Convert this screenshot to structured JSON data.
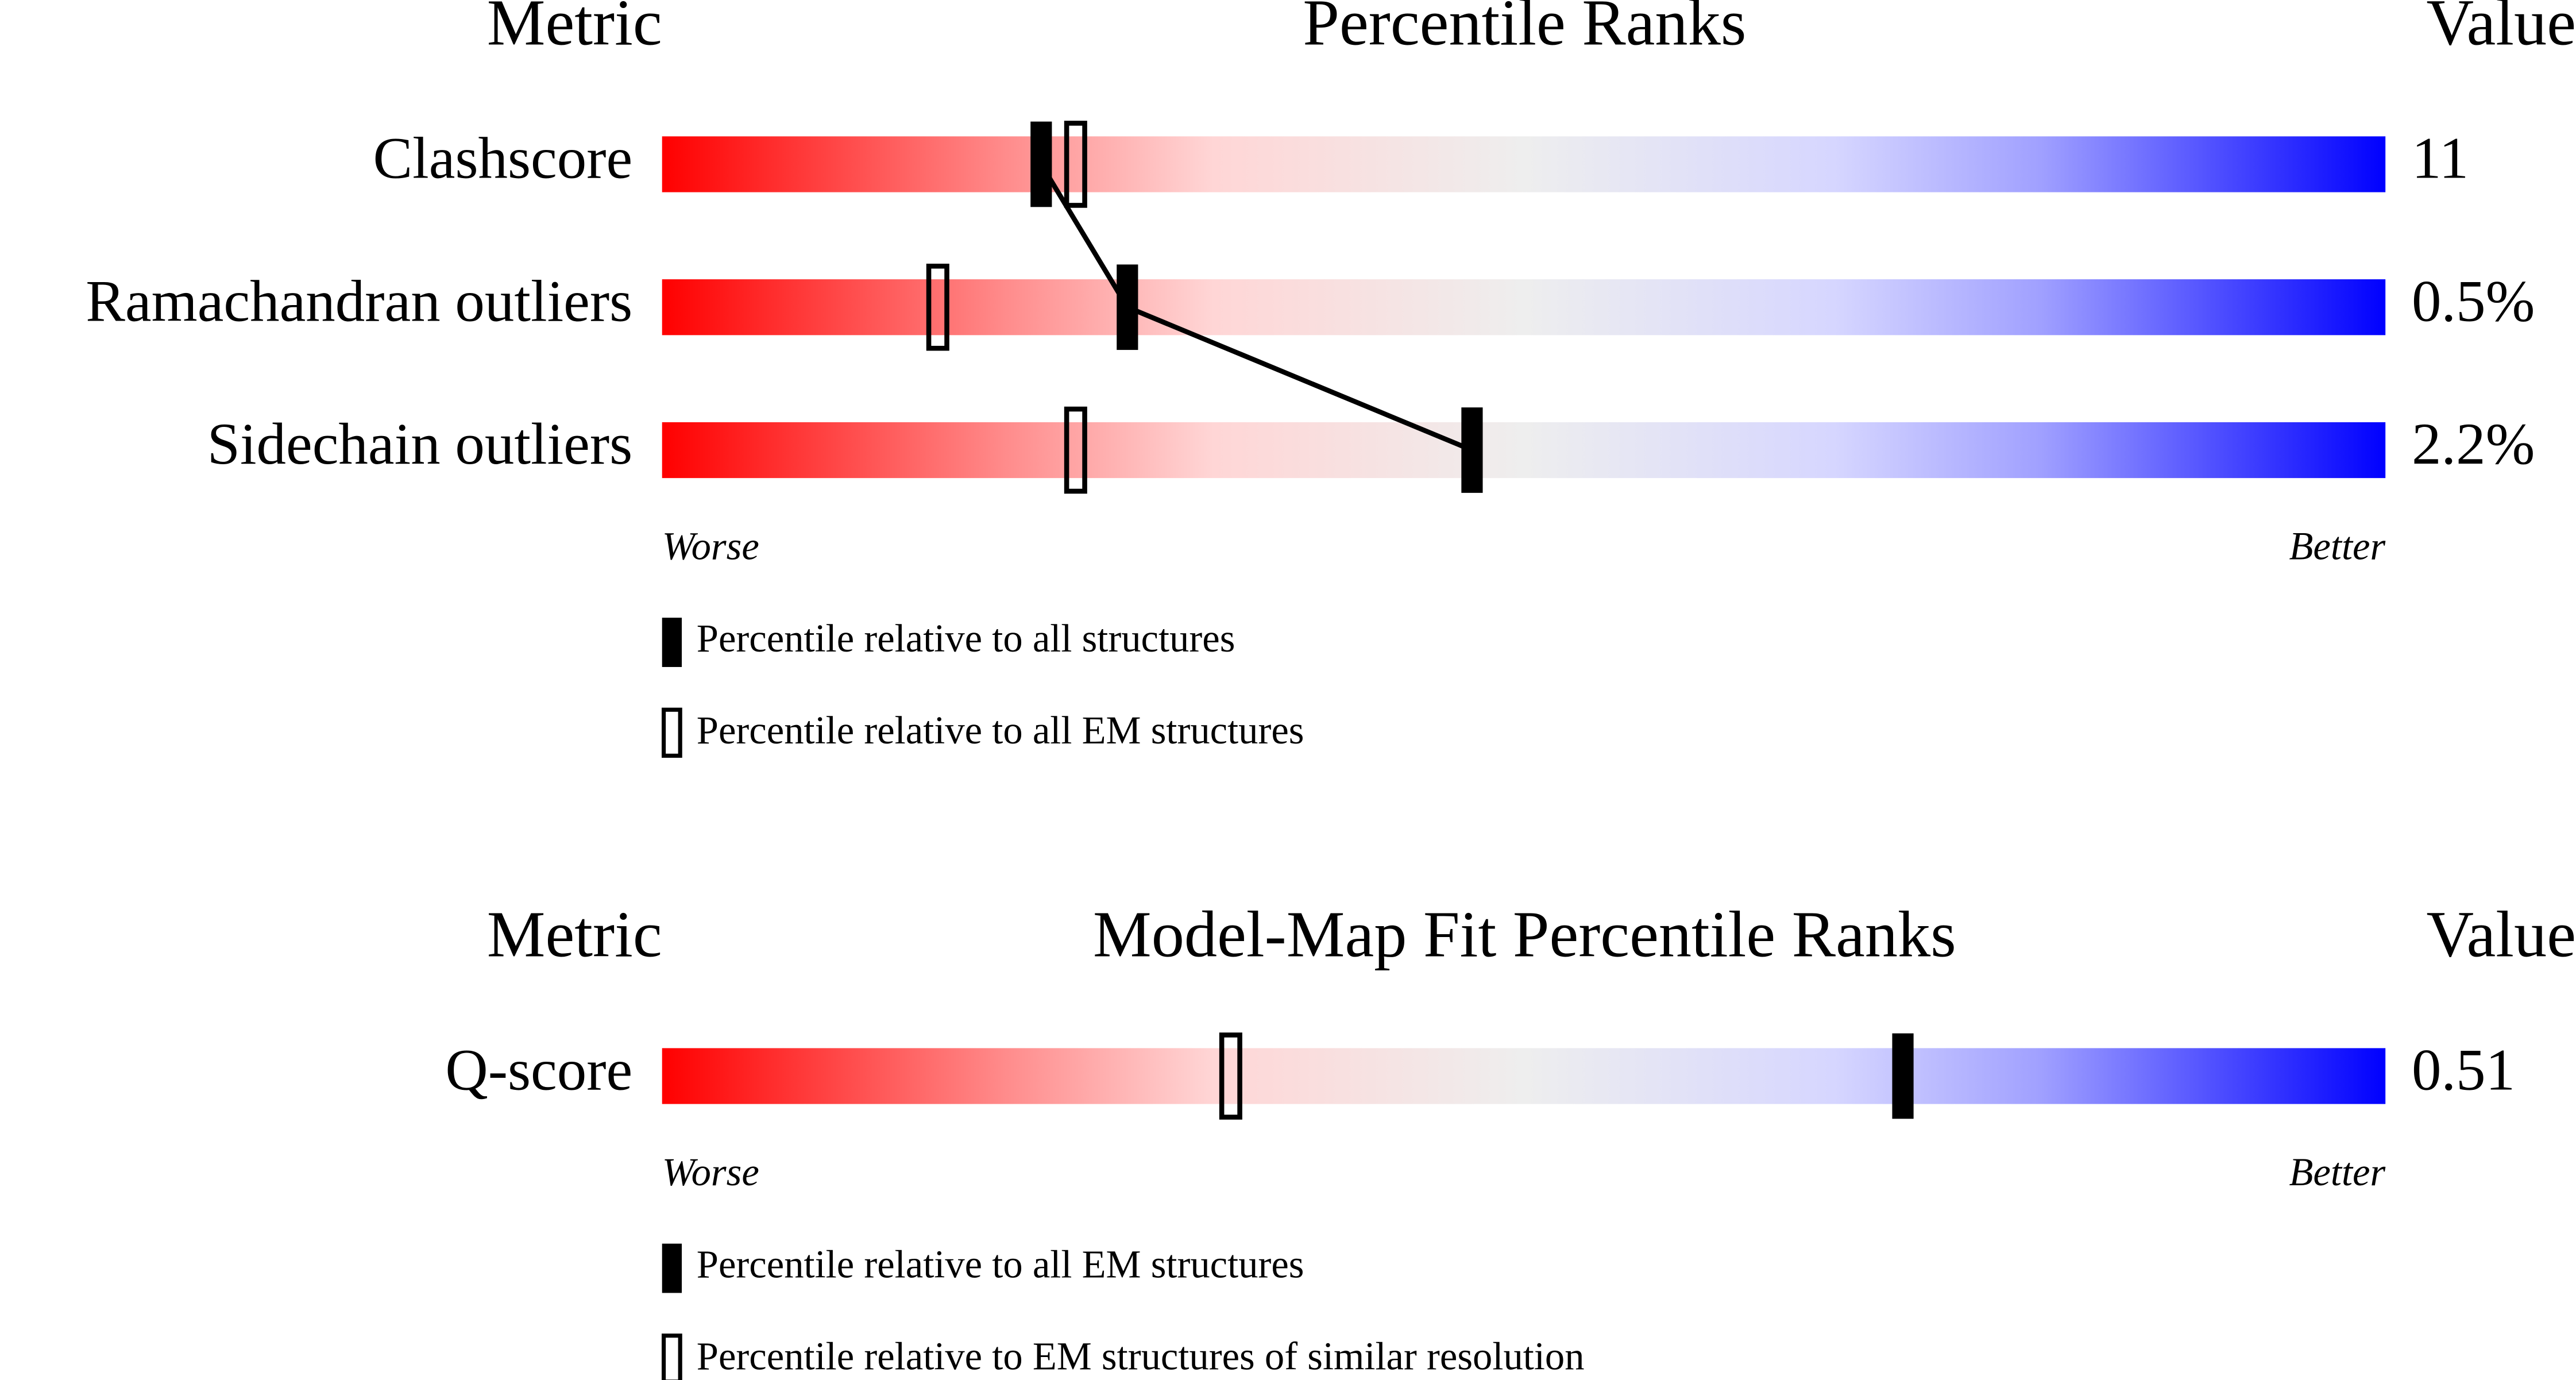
{
  "chart_data": [
    {
      "type": "slider",
      "metric_header": "Metric",
      "title": "Percentile Ranks",
      "value_header": "Value",
      "categories": [
        "Clashscore",
        "Ramachandran outliers",
        "Sidechain outliers"
      ],
      "values": [
        "11",
        "0.5%",
        "2.2%"
      ],
      "xlim": [
        0,
        100
      ],
      "low_label": "Worse",
      "high_label": "Better",
      "series": [
        {
          "name": "Percentile relative to all structures",
          "marker": "filled",
          "color": "#000000",
          "values": [
            22,
            27,
            47
          ]
        },
        {
          "name": "Percentile relative to all EM structures",
          "marker": "open",
          "color": "#000000",
          "values": [
            24,
            16,
            24
          ]
        }
      ]
    },
    {
      "type": "slider",
      "metric_header": "Metric",
      "title": "Model-Map Fit Percentile Ranks",
      "value_header": "Value",
      "categories": [
        "Q-score"
      ],
      "values": [
        "0.51"
      ],
      "xlim": [
        0,
        100
      ],
      "low_label": "Worse",
      "high_label": "Better",
      "series": [
        {
          "name": "Percentile relative to all EM structures",
          "marker": "filled",
          "color": "#000000",
          "values": [
            72
          ]
        },
        {
          "name": "Percentile relative to EM structures of similar resolution",
          "marker": "open",
          "color": "#000000",
          "values": [
            33
          ]
        }
      ]
    }
  ]
}
